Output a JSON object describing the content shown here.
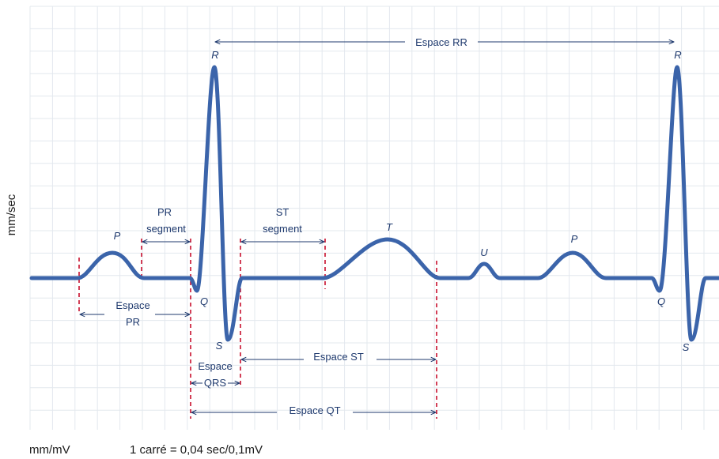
{
  "axes": {
    "y_label": "mm/sec",
    "x_label": "mm/mV",
    "scale_note": "1 carré = 0,04 sec/0,1mV"
  },
  "waves": {
    "p1": "P",
    "q1": "Q",
    "r1": "R",
    "s1": "S",
    "t": "T",
    "u": "U",
    "p2": "P",
    "q2": "Q",
    "r2": "R",
    "s2": "S"
  },
  "intervals": {
    "rr": "Espace RR",
    "pr_segment_line1": "PR",
    "pr_segment_line2": "segment",
    "st_segment_line1": "ST",
    "st_segment_line2": "segment",
    "pr_interval_line1": "Espace",
    "pr_interval_line2": "PR",
    "qrs_line1": "Espace",
    "qrs_line2": "QRS",
    "st_interval": "Espace ST",
    "qt_interval": "Espace QT"
  },
  "colors": {
    "trace": "#3b64aa",
    "grid": "#e3e8ee",
    "markers": "#c8102e",
    "annotation": "#1f3a6e"
  }
}
